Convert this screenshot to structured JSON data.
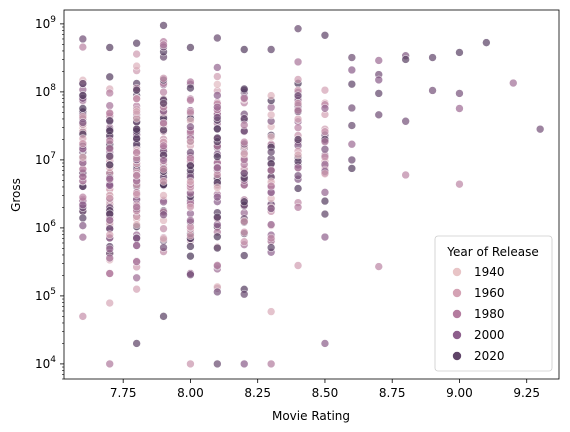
{
  "chart_data": {
    "type": "scatter",
    "title": "",
    "xlabel": "Movie Rating",
    "ylabel": "Gross",
    "xlim": [
      7.53,
      9.37
    ],
    "ylim": [
      6000,
      1600000000
    ],
    "yscale": "log",
    "xticks": [
      {
        "value": 7.75,
        "label": "7.75"
      },
      {
        "value": 8.0,
        "label": "8.00"
      },
      {
        "value": 8.25,
        "label": "8.25"
      },
      {
        "value": 8.5,
        "label": "8.50"
      },
      {
        "value": 8.75,
        "label": "8.75"
      },
      {
        "value": 9.0,
        "label": "9.00"
      },
      {
        "value": 9.25,
        "label": "9.25"
      }
    ],
    "yticks": [
      {
        "value": 10000,
        "base": "10",
        "exp": "4"
      },
      {
        "value": 100000,
        "base": "10",
        "exp": "5"
      },
      {
        "value": 1000000,
        "base": "10",
        "exp": "6"
      },
      {
        "value": 10000000,
        "base": "10",
        "exp": "7"
      },
      {
        "value": 100000000,
        "base": "10",
        "exp": "8"
      },
      {
        "value": 1000000000,
        "base": "10",
        "exp": "9"
      }
    ],
    "hue": {
      "name": "Year of Release",
      "min": 1920,
      "max": 2025
    },
    "legend": {
      "title": "Year of Release",
      "position": "lower-right",
      "entries": [
        {
          "label": "1940",
          "color": "#e8c4c6"
        },
        {
          "label": "1960",
          "color": "#d4a2b4"
        },
        {
          "label": "1980",
          "color": "#b47c9f"
        },
        {
          "label": "2000",
          "color": "#8d5f8c"
        },
        {
          "label": "2020",
          "color": "#5f4468"
        }
      ]
    },
    "columns": [
      {
        "rating": 7.6,
        "min": 50000,
        "max": 600000000,
        "n": 70
      },
      {
        "rating": 7.7,
        "min": 10000,
        "max": 450000000,
        "n": 95
      },
      {
        "rating": 7.8,
        "min": 20000,
        "max": 520000000,
        "n": 105
      },
      {
        "rating": 7.9,
        "min": 50000,
        "max": 950000000,
        "n": 80
      },
      {
        "rating": 8.0,
        "min": 10000,
        "max": 450000000,
        "n": 70
      },
      {
        "rating": 8.1,
        "min": 10000,
        "max": 620000000,
        "n": 70
      },
      {
        "rating": 8.2,
        "min": 10000,
        "max": 420000000,
        "n": 55
      },
      {
        "rating": 8.3,
        "min": 10000,
        "max": 420000000,
        "n": 45
      },
      {
        "rating": 8.4,
        "min": 280000,
        "max": 850000000,
        "n": 35
      },
      {
        "rating": 8.5,
        "min": 20000,
        "max": 680000000,
        "n": 25
      }
    ],
    "points": [
      {
        "rating": 8.6,
        "gross": 320000000,
        "year": 1998
      },
      {
        "rating": 8.6,
        "gross": 210000000,
        "year": 1985
      },
      {
        "rating": 8.6,
        "gross": 130000000,
        "year": 2005
      },
      {
        "rating": 8.6,
        "gross": 58000000,
        "year": 1995
      },
      {
        "rating": 8.6,
        "gross": 32000000,
        "year": 2001
      },
      {
        "rating": 8.6,
        "gross": 17000000,
        "year": 1975
      },
      {
        "rating": 8.6,
        "gross": 10000000,
        "year": 1999
      },
      {
        "rating": 8.6,
        "gross": 7500000,
        "year": 2015
      },
      {
        "rating": 8.7,
        "gross": 290000000,
        "year": 1975
      },
      {
        "rating": 8.7,
        "gross": 180000000,
        "year": 1995
      },
      {
        "rating": 8.7,
        "gross": 150000000,
        "year": 1985
      },
      {
        "rating": 8.7,
        "gross": 95000000,
        "year": 2003
      },
      {
        "rating": 8.7,
        "gross": 46000000,
        "year": 1997
      },
      {
        "rating": 8.7,
        "gross": 270000,
        "year": 1957
      },
      {
        "rating": 8.8,
        "gross": 340000000,
        "year": 1990
      },
      {
        "rating": 8.8,
        "gross": 300000000,
        "year": 2010
      },
      {
        "rating": 8.8,
        "gross": 37000000,
        "year": 1994
      },
      {
        "rating": 8.8,
        "gross": 6000000,
        "year": 1957
      },
      {
        "rating": 8.9,
        "gross": 320000000,
        "year": 2003
      },
      {
        "rating": 8.9,
        "gross": 105000000,
        "year": 1994
      },
      {
        "rating": 9.0,
        "gross": 380000000,
        "year": 2008
      },
      {
        "rating": 9.0,
        "gross": 95000000,
        "year": 1993
      },
      {
        "rating": 9.0,
        "gross": 57000000,
        "year": 1974
      },
      {
        "rating": 9.0,
        "gross": 4400000,
        "year": 1957
      },
      {
        "rating": 9.1,
        "gross": 530000000,
        "year": 2008
      },
      {
        "rating": 9.2,
        "gross": 135000000,
        "year": 1972
      },
      {
        "rating": 9.3,
        "gross": 28300000,
        "year": 1994
      }
    ]
  }
}
